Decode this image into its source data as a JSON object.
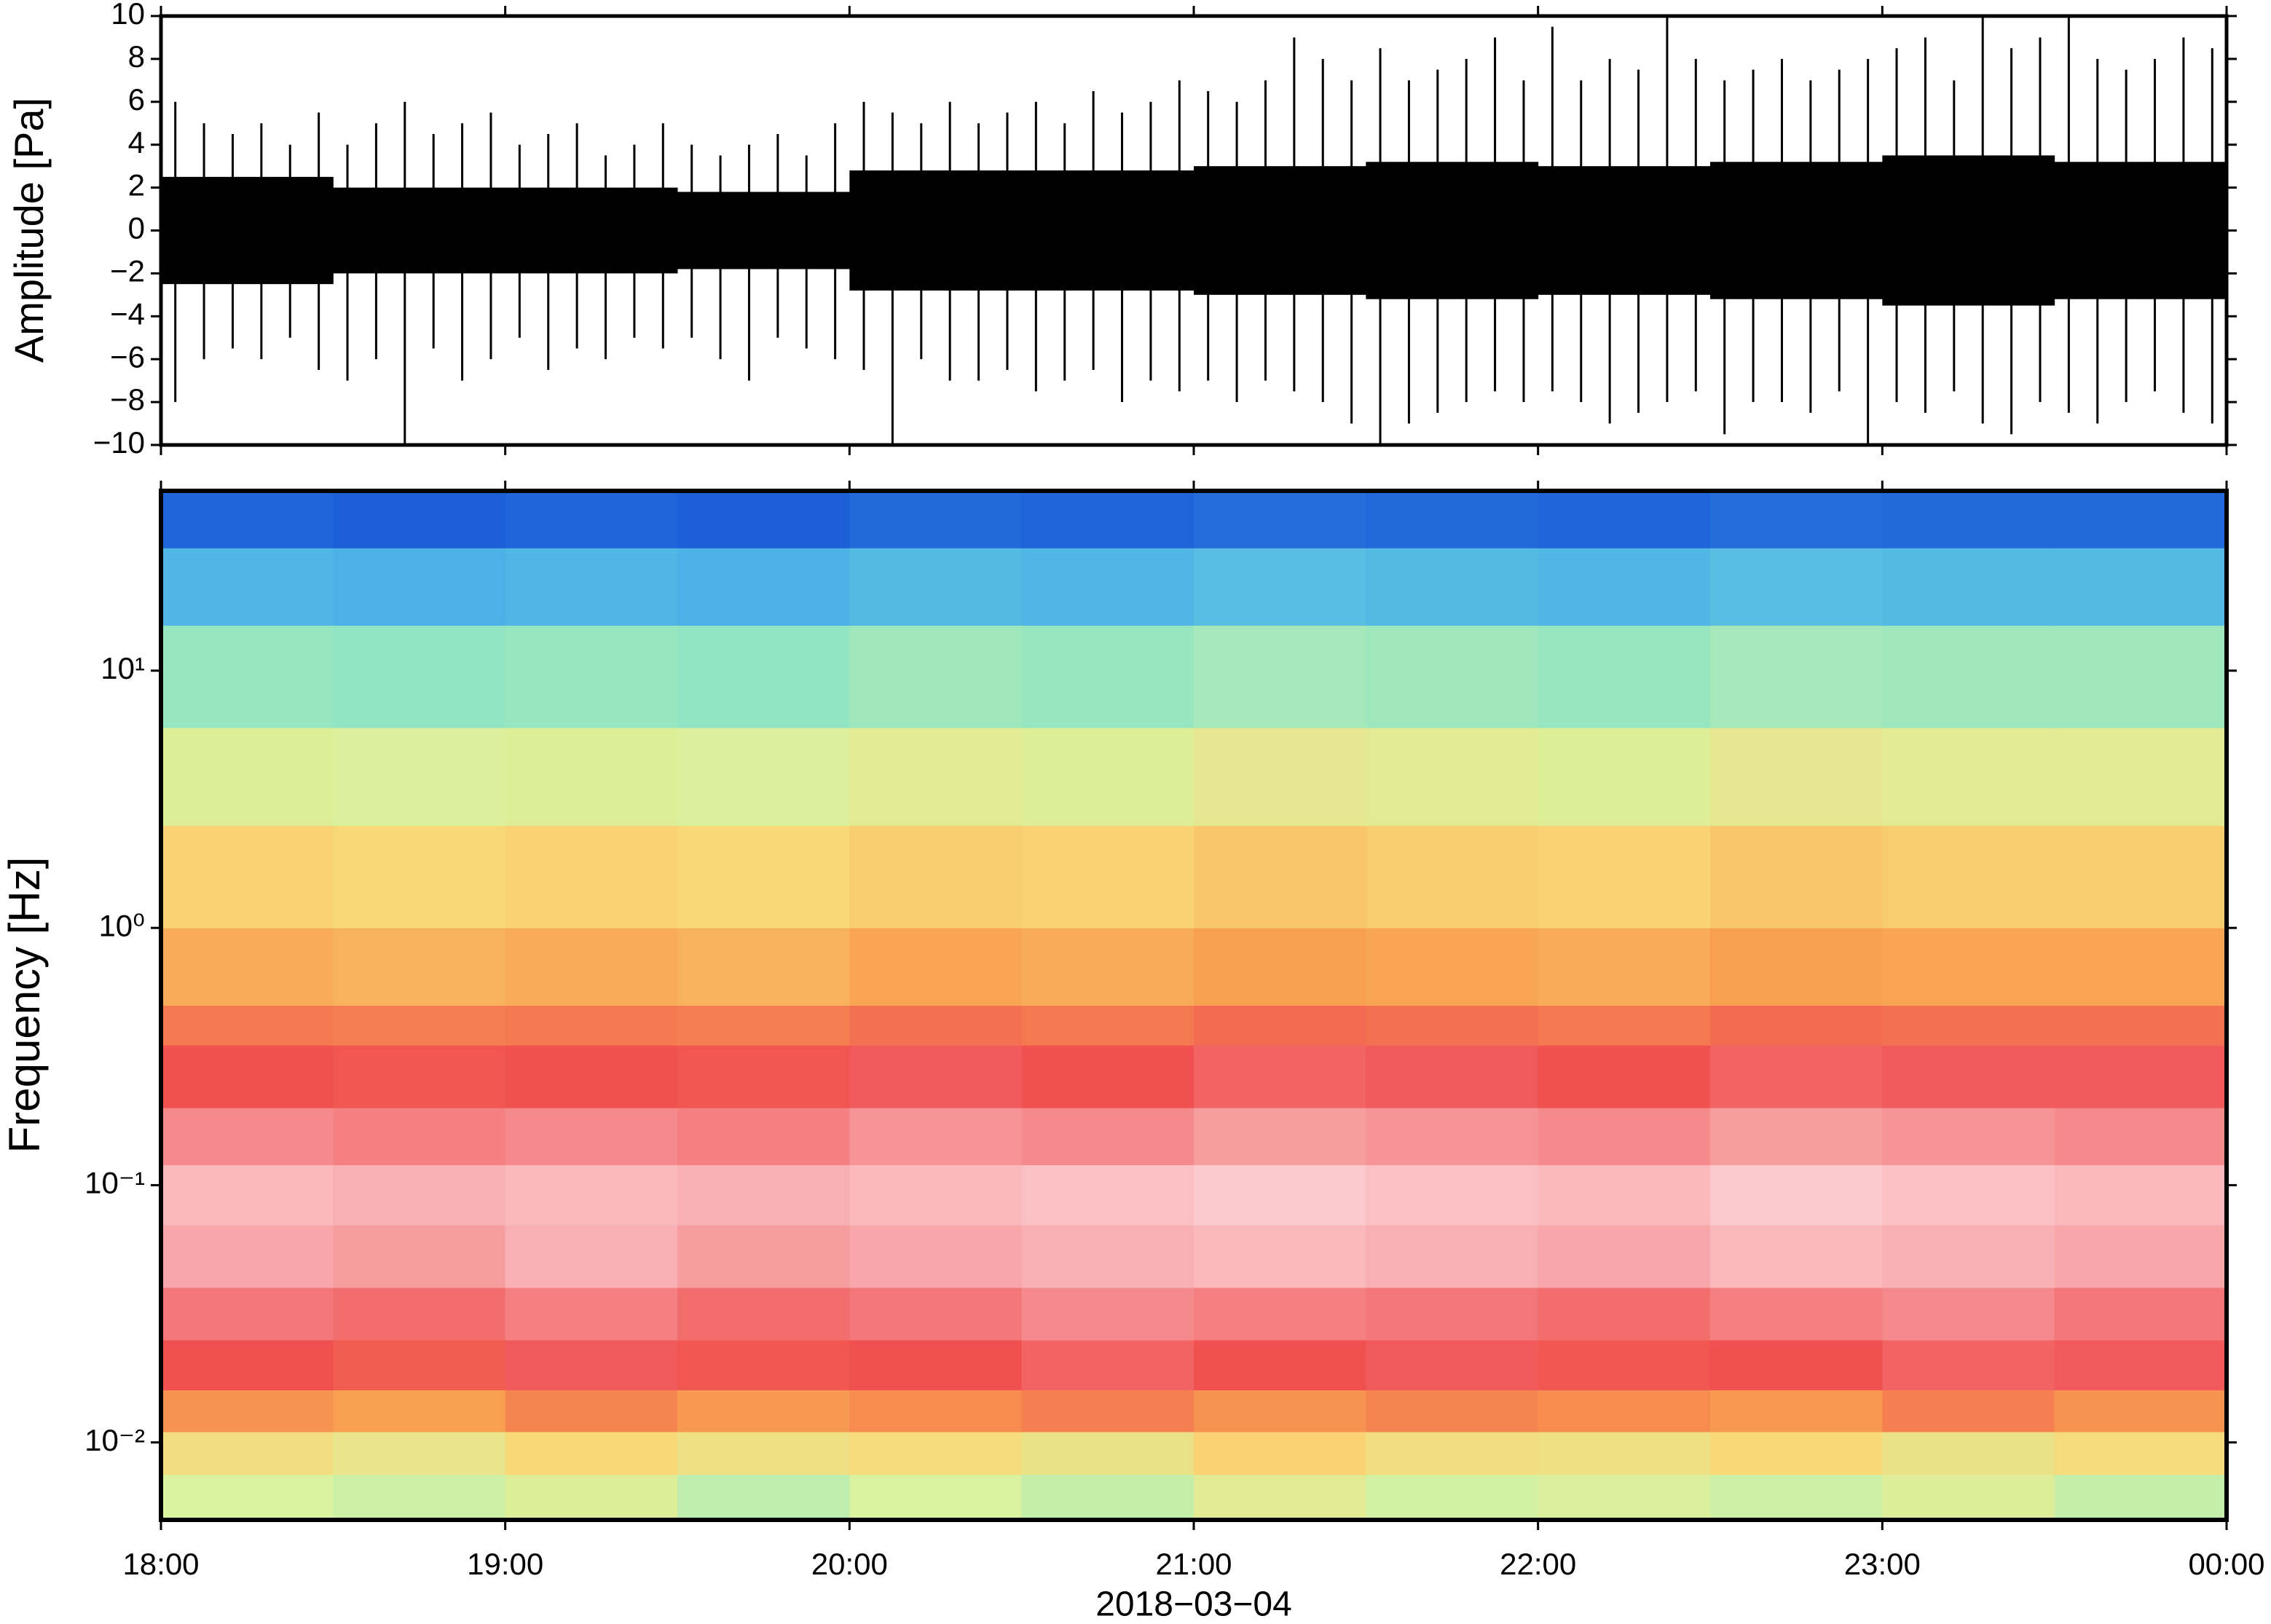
{
  "chart_data": [
    {
      "type": "waveform",
      "ylabel": "Amplitude [Pa]",
      "xlim": [
        0,
        360
      ],
      "xticks": [
        0,
        60,
        120,
        180,
        240,
        300,
        360
      ],
      "ylim": [
        -10,
        10
      ],
      "yticks": [
        {
          "value": -10,
          "label": "−10"
        },
        {
          "value": -8,
          "label": "−8"
        },
        {
          "value": -6,
          "label": "−6"
        },
        {
          "value": -4,
          "label": "−4"
        },
        {
          "value": -2,
          "label": "−2"
        },
        0,
        2,
        4,
        6,
        8,
        10
      ],
      "color": "#000000",
      "x": [
        0,
        5,
        10,
        15,
        20,
        25,
        30,
        35,
        40,
        45,
        50,
        55,
        60,
        65,
        70,
        75,
        80,
        85,
        90,
        95,
        100,
        105,
        110,
        115,
        120,
        125,
        130,
        135,
        140,
        145,
        150,
        155,
        160,
        165,
        170,
        175,
        180,
        185,
        190,
        195,
        200,
        205,
        210,
        215,
        220,
        225,
        230,
        235,
        240,
        245,
        250,
        255,
        260,
        265,
        270,
        275,
        280,
        285,
        290,
        295,
        300,
        305,
        310,
        315,
        320,
        325,
        330,
        335,
        340,
        345,
        350,
        355
      ],
      "max_values": [
        6,
        5,
        4.5,
        5,
        4,
        5.5,
        4,
        5,
        6,
        4.5,
        5,
        5.5,
        4,
        4.5,
        5,
        3.5,
        4,
        5,
        4,
        3.5,
        4,
        4.5,
        3.5,
        5,
        6,
        5.5,
        5,
        6,
        5,
        5.5,
        6,
        5,
        6.5,
        5.5,
        6,
        7,
        6.5,
        6,
        7,
        9,
        8,
        7,
        8.5,
        7,
        7.5,
        8,
        9,
        7,
        9.5,
        7,
        8,
        7.5,
        10,
        8,
        7,
        7.5,
        8,
        7,
        7.5,
        8,
        8.5,
        9,
        7,
        10,
        8.5,
        9,
        10,
        8,
        7.5,
        8,
        9,
        8.5
      ],
      "min_values": [
        -8,
        -6,
        -5.5,
        -6,
        -5,
        -6.5,
        -7,
        -6,
        -10,
        -5.5,
        -7,
        -6,
        -5,
        -6.5,
        -5.5,
        -6,
        -5,
        -5.5,
        -5,
        -6,
        -7,
        -5,
        -5.5,
        -6,
        -6.5,
        -10,
        -6,
        -7,
        -7,
        -6.5,
        -7.5,
        -7,
        -6.5,
        -8,
        -7,
        -7.5,
        -7,
        -8,
        -7,
        -7.5,
        -8,
        -9,
        -10,
        -9,
        -8.5,
        -8,
        -7.5,
        -8,
        -7.5,
        -8,
        -9,
        -8.5,
        -8,
        -7.5,
        -9.5,
        -8,
        -8,
        -8.5,
        -7.5,
        -10,
        -8,
        -8.5,
        -7.5,
        -9,
        -9.5,
        -8,
        -8.5,
        -9,
        -8,
        -7.5,
        -8.5,
        -9
      ],
      "band_x": [
        0,
        30,
        60,
        90,
        120,
        150,
        180,
        210,
        240,
        270,
        300,
        330
      ],
      "band_values": [
        2.5,
        2,
        2,
        1.8,
        2.8,
        2.8,
        3,
        3.2,
        3,
        3.2,
        3.5,
        3.2
      ]
    },
    {
      "type": "heatmap",
      "ylabel": "Frequency [Hz]",
      "xlabel": "2018−03−04",
      "log_y": true,
      "xlim": [
        0,
        360
      ],
      "xticks": [
        {
          "value": 0,
          "label": "18:00"
        },
        {
          "value": 60,
          "label": "19:00"
        },
        {
          "value": 120,
          "label": "20:00"
        },
        {
          "value": 180,
          "label": "21:00"
        },
        {
          "value": 240,
          "label": "22:00"
        },
        {
          "value": 300,
          "label": "23:00"
        },
        {
          "value": 360,
          "label": "00:00"
        }
      ],
      "ylim": [
        0.005,
        50
      ],
      "yticks": [
        {
          "value": 0.01,
          "label": "10⁻²"
        },
        {
          "value": 0.1,
          "label": "10⁻¹"
        },
        {
          "value": 1,
          "label": "10⁰"
        },
        {
          "value": 10,
          "label": "10¹"
        }
      ],
      "time_edges": [
        0,
        30,
        60,
        90,
        120,
        150,
        180,
        210,
        240,
        270,
        300,
        330,
        360
      ],
      "frequency_edges": [
        0.005,
        0.0075,
        0.011,
        0.016,
        0.025,
        0.04,
        0.07,
        0.12,
        0.2,
        0.35,
        0.5,
        1,
        2.5,
        6,
        15,
        30,
        50
      ],
      "colormap": [
        {
          "value": 0,
          "color": "#0a3cc8"
        },
        {
          "value": 20,
          "color": "#3ea0f0"
        },
        {
          "value": 35,
          "color": "#78e0d0"
        },
        {
          "value": 50,
          "color": "#d8f2a0"
        },
        {
          "value": 60,
          "color": "#f8d878"
        },
        {
          "value": 70,
          "color": "#f8a050"
        },
        {
          "value": 82,
          "color": "#f05050"
        },
        {
          "value": 92,
          "color": "#f8b0b4"
        },
        {
          "value": 100,
          "color": "#fff0f0"
        }
      ],
      "z": [
        [
          50,
          48,
          52,
          46,
          50,
          47,
          53,
          49,
          51,
          48,
          52,
          47
        ],
        [
          58,
          55,
          60,
          57,
          59,
          56,
          61,
          58,
          57,
          60,
          56,
          59
        ],
        [
          72,
          70,
          74,
          71,
          73,
          75,
          72,
          74,
          73,
          71,
          75,
          72
        ],
        [
          82,
          80,
          83,
          81,
          82,
          84,
          82,
          83,
          81,
          82,
          84,
          83
        ],
        [
          86,
          85,
          87,
          85,
          86,
          88,
          87,
          86,
          85,
          87,
          88,
          86
        ],
        [
          91,
          90,
          92,
          90,
          91,
          92,
          93,
          92,
          91,
          93,
          92,
          91
        ],
        [
          93,
          92,
          93,
          92,
          93,
          94,
          95,
          94,
          93,
          95,
          94,
          93
        ],
        [
          88,
          87,
          88,
          87,
          89,
          88,
          90,
          89,
          88,
          90,
          89,
          88
        ],
        [
          82,
          81,
          82,
          81,
          83,
          82,
          84,
          83,
          82,
          84,
          83,
          83
        ],
        [
          76,
          75,
          76,
          75,
          77,
          76,
          78,
          77,
          76,
          78,
          77,
          77
        ],
        [
          68,
          67,
          68,
          67,
          69,
          68,
          70,
          69,
          68,
          70,
          69,
          69
        ],
        [
          61,
          60,
          61,
          60,
          62,
          61,
          63,
          62,
          61,
          63,
          62,
          62
        ],
        [
          52,
          51,
          52,
          51,
          53,
          52,
          54,
          53,
          52,
          54,
          53,
          53
        ],
        [
          40,
          39,
          40,
          39,
          41,
          40,
          42,
          41,
          40,
          42,
          41,
          41
        ],
        [
          25,
          24,
          25,
          24,
          26,
          25,
          27,
          26,
          25,
          27,
          26,
          26
        ],
        [
          8,
          7,
          8,
          7,
          9,
          8,
          10,
          9,
          8,
          10,
          9,
          9
        ]
      ]
    }
  ]
}
